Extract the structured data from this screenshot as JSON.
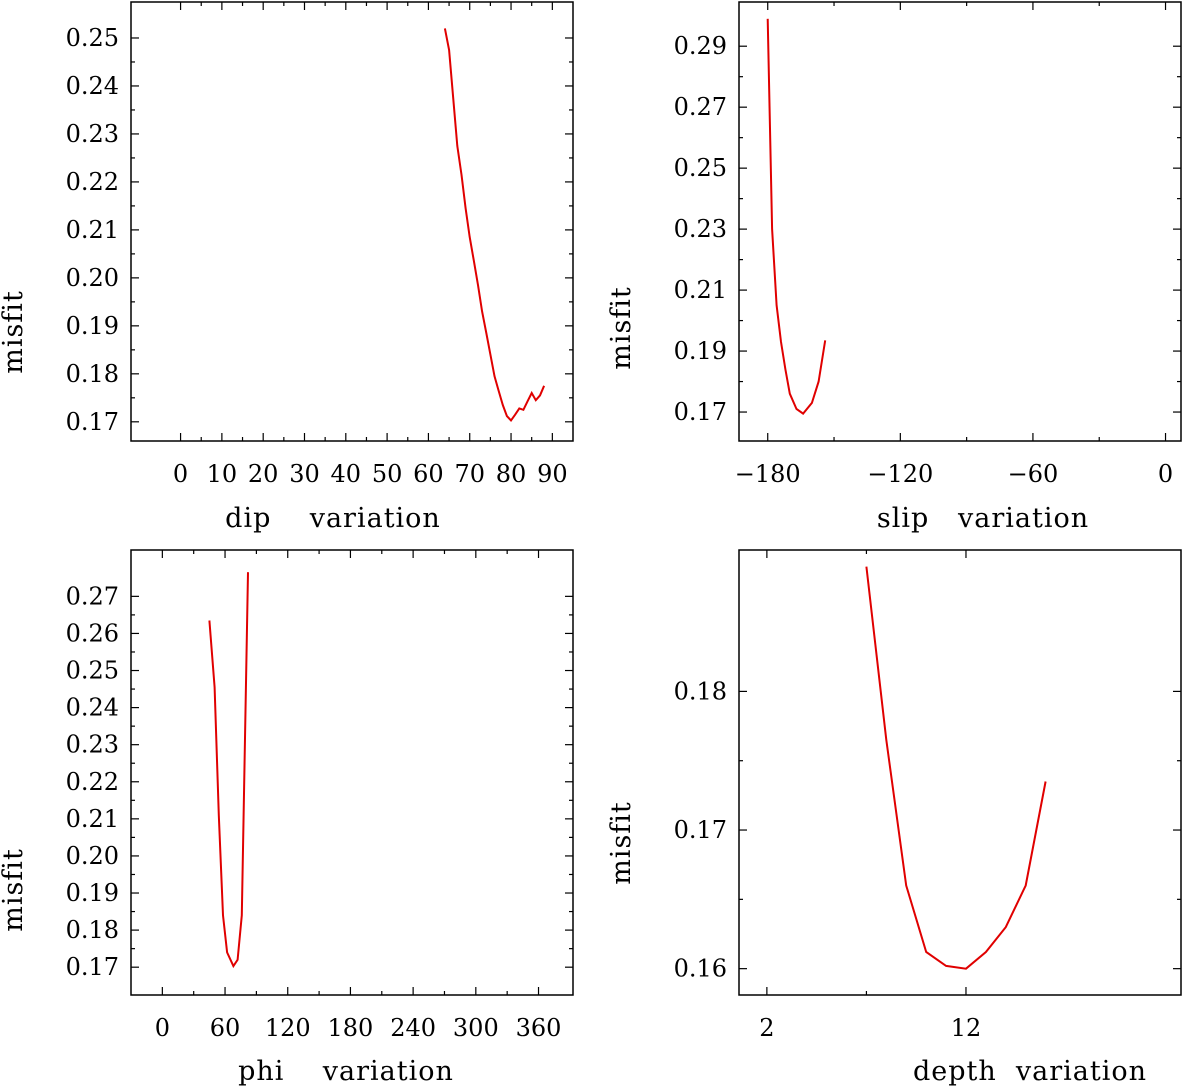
{
  "chart_data": [
    {
      "type": "line",
      "xlabel": "dip    variation",
      "ylabel": "misfit",
      "xlim": [
        -12,
        95
      ],
      "ylim": [
        0.166,
        0.2575
      ],
      "xticks": [
        0,
        10,
        20,
        30,
        40,
        50,
        60,
        70,
        80,
        90
      ],
      "yticks": [
        0.17,
        0.18,
        0.19,
        0.2,
        0.21,
        0.22,
        0.23,
        0.24,
        0.25
      ],
      "xtick_labels": [
        "0",
        "10",
        "20",
        "30",
        "40",
        "50",
        "60",
        "70",
        "80",
        "90"
      ],
      "ytick_labels": [
        "0.17",
        "0.18",
        "0.19",
        "0.20",
        "0.21",
        "0.22",
        "0.23",
        "0.24",
        "0.25"
      ],
      "x": [
        64,
        65,
        66,
        67,
        68,
        69,
        70,
        71,
        72,
        73,
        74,
        75,
        76,
        77,
        78,
        79,
        80,
        81,
        82,
        83,
        84,
        85,
        86,
        87,
        88
      ],
      "y": [
        0.252,
        0.2475,
        0.2375,
        0.2275,
        0.2215,
        0.2145,
        0.2085,
        0.2035,
        0.1985,
        0.193,
        0.1885,
        0.184,
        0.1795,
        0.1765,
        0.1735,
        0.1712,
        0.1703,
        0.1715,
        0.1728,
        0.1725,
        0.1743,
        0.176,
        0.1745,
        0.1755,
        0.1775
      ]
    },
    {
      "type": "line",
      "xlabel": "slip   variation",
      "ylabel": "misfit",
      "xlim": [
        -193,
        7
      ],
      "ylim": [
        0.1605,
        0.3045
      ],
      "xticks": [
        -180,
        -120,
        -60,
        0
      ],
      "yticks": [
        0.17,
        0.19,
        0.21,
        0.23,
        0.25,
        0.27,
        0.29
      ],
      "xtick_labels": [
        "−180",
        "−120",
        "−60",
        "0"
      ],
      "ytick_labels": [
        "0.17",
        "0.19",
        "0.21",
        "0.23",
        "0.25",
        "0.27",
        "0.29"
      ],
      "x": [
        -180,
        -178,
        -176,
        -174,
        -172,
        -170,
        -167,
        -164,
        -160,
        -157,
        -154
      ],
      "y": [
        0.299,
        0.23,
        0.205,
        0.193,
        0.184,
        0.176,
        0.171,
        0.1695,
        0.173,
        0.18,
        0.1935
      ]
    },
    {
      "type": "line",
      "xlabel": "phi    variation",
      "ylabel": "misfit",
      "xlim": [
        -30,
        393
      ],
      "ylim": [
        0.1625,
        0.2825
      ],
      "xticks": [
        0,
        60,
        120,
        180,
        240,
        300,
        360
      ],
      "yticks": [
        0.17,
        0.18,
        0.19,
        0.2,
        0.21,
        0.22,
        0.23,
        0.24,
        0.25,
        0.26,
        0.27
      ],
      "xtick_labels": [
        "0",
        "60",
        "120",
        "180",
        "240",
        "300",
        "360"
      ],
      "ytick_labels": [
        "0.17",
        "0.18",
        "0.19",
        "0.20",
        "0.21",
        "0.22",
        "0.23",
        "0.24",
        "0.25",
        "0.26",
        "0.27"
      ],
      "x": [
        45,
        50,
        54,
        58,
        62,
        68,
        72,
        76,
        82
      ],
      "y": [
        0.2635,
        0.2455,
        0.211,
        0.184,
        0.174,
        0.1703,
        0.172,
        0.184,
        0.2765
      ]
    },
    {
      "type": "line",
      "xlabel": "depth  variation",
      "ylabel": "misfit",
      "xlim": [
        0.6,
        22.8
      ],
      "ylim": [
        0.1581,
        0.1902
      ],
      "xticks": [
        2,
        12
      ],
      "yticks": [
        0.16,
        0.17,
        0.18
      ],
      "xtick_labels": [
        "2",
        "12"
      ],
      "ytick_labels": [
        "0.16",
        "0.17",
        "0.18"
      ],
      "x": [
        7,
        8,
        9,
        10,
        11,
        12,
        13,
        14,
        15,
        16
      ],
      "y": [
        0.189,
        0.1765,
        0.166,
        0.1612,
        0.1602,
        0.16,
        0.1612,
        0.163,
        0.166,
        0.1735
      ]
    }
  ]
}
